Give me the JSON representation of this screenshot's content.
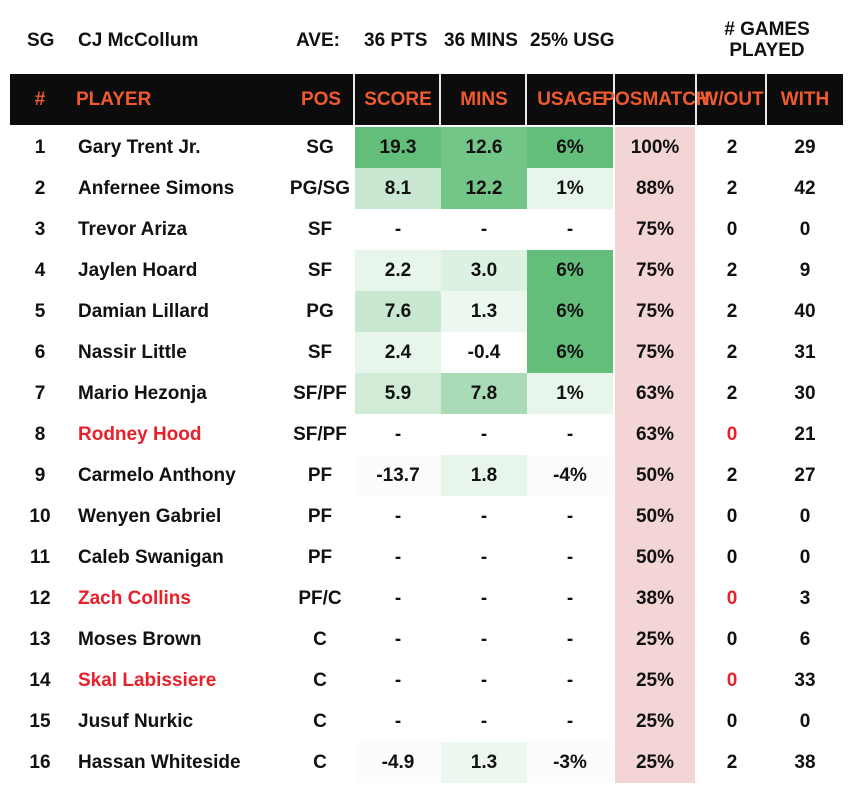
{
  "header": {
    "position": "SG",
    "player": "CJ McCollum",
    "ave_label": "AVE:",
    "pts": "36 PTS",
    "mins": "36 MINS",
    "usg": "25% USG",
    "games_line1": "# GAMES",
    "games_line2": "PLAYED"
  },
  "columns": {
    "num": "#",
    "player": "PLAYER",
    "pos": "POS",
    "score": "SCORE",
    "mins": "MINS",
    "usage": "USAGE",
    "match_line1": "POS",
    "match_line2": "MATCH",
    "wout": "W/OUT",
    "with": "WITH"
  },
  "colors": {
    "header_bg": "#0c0c0c",
    "header_text": "#ef5a2f",
    "injured_text": "#e8202a",
    "match_bg": "#f4d5d5",
    "heat_green": "#63be7b"
  },
  "rows": [
    {
      "num": "1",
      "name": "Gary Trent Jr.",
      "pos": "SG",
      "score": "19.3",
      "mins": "12.6",
      "usage": "6%",
      "match": "100%",
      "wout": "2",
      "with": "29",
      "injured": false,
      "shade": {
        "score": 1.0,
        "mins": 0.9,
        "usage": 1.0
      }
    },
    {
      "num": "2",
      "name": "Anfernee Simons",
      "pos": "PG/SG",
      "score": "8.1",
      "mins": "12.2",
      "usage": "1%",
      "match": "88%",
      "wout": "2",
      "with": "42",
      "injured": false,
      "shade": {
        "score": 0.35,
        "mins": 0.9,
        "usage": 0.15
      }
    },
    {
      "num": "3",
      "name": "Trevor Ariza",
      "pos": "SF",
      "score": "-",
      "mins": "-",
      "usage": "-",
      "match": "75%",
      "wout": "0",
      "with": "0",
      "injured": false,
      "shade": {
        "score": 0,
        "mins": 0,
        "usage": 0
      }
    },
    {
      "num": "4",
      "name": "Jaylen Hoard",
      "pos": "SF",
      "score": "2.2",
      "mins": "3.0",
      "usage": "6%",
      "match": "75%",
      "wout": "2",
      "with": "9",
      "injured": false,
      "shade": {
        "score": 0.15,
        "mins": 0.22,
        "usage": 1.0
      }
    },
    {
      "num": "5",
      "name": "Damian Lillard",
      "pos": "PG",
      "score": "7.6",
      "mins": "1.3",
      "usage": "6%",
      "match": "75%",
      "wout": "2",
      "with": "40",
      "injured": false,
      "shade": {
        "score": 0.35,
        "mins": 0.12,
        "usage": 1.0
      }
    },
    {
      "num": "6",
      "name": "Nassir Little",
      "pos": "SF",
      "score": "2.4",
      "mins": "-0.4",
      "usage": "6%",
      "match": "75%",
      "wout": "2",
      "with": "31",
      "injured": false,
      "shade": {
        "score": 0.15,
        "mins": 0,
        "usage": 1.0
      }
    },
    {
      "num": "7",
      "name": "Mario Hezonja",
      "pos": "SF/PF",
      "score": "5.9",
      "mins": "7.8",
      "usage": "1%",
      "match": "63%",
      "wout": "2",
      "with": "30",
      "injured": false,
      "shade": {
        "score": 0.3,
        "mins": 0.55,
        "usage": 0.15
      }
    },
    {
      "num": "8",
      "name": "Rodney Hood",
      "pos": "SF/PF",
      "score": "-",
      "mins": "-",
      "usage": "-",
      "match": "63%",
      "wout": "0",
      "with": "21",
      "injured": true,
      "shade": {
        "score": 0,
        "mins": 0,
        "usage": 0
      }
    },
    {
      "num": "9",
      "name": "Carmelo Anthony",
      "pos": "PF",
      "score": "-13.7",
      "mins": "1.8",
      "usage": "-4%",
      "match": "50%",
      "wout": "2",
      "with": "27",
      "injured": false,
      "shade": {
        "score": 0.04,
        "mins": 0.15,
        "usage": 0.04
      }
    },
    {
      "num": "10",
      "name": "Wenyen Gabriel",
      "pos": "PF",
      "score": "-",
      "mins": "-",
      "usage": "-",
      "match": "50%",
      "wout": "0",
      "with": "0",
      "injured": false,
      "shade": {
        "score": 0,
        "mins": 0,
        "usage": 0
      }
    },
    {
      "num": "11",
      "name": "Caleb Swanigan",
      "pos": "PF",
      "score": "-",
      "mins": "-",
      "usage": "-",
      "match": "50%",
      "wout": "0",
      "with": "0",
      "injured": false,
      "shade": {
        "score": 0,
        "mins": 0,
        "usage": 0
      }
    },
    {
      "num": "12",
      "name": "Zach Collins",
      "pos": "PF/C",
      "score": "-",
      "mins": "-",
      "usage": "-",
      "match": "38%",
      "wout": "0",
      "with": "3",
      "injured": true,
      "shade": {
        "score": 0,
        "mins": 0,
        "usage": 0
      }
    },
    {
      "num": "13",
      "name": "Moses Brown",
      "pos": "C",
      "score": "-",
      "mins": "-",
      "usage": "-",
      "match": "25%",
      "wout": "0",
      "with": "6",
      "injured": false,
      "shade": {
        "score": 0,
        "mins": 0,
        "usage": 0
      }
    },
    {
      "num": "14",
      "name": "Skal Labissiere",
      "pos": "C",
      "score": "-",
      "mins": "-",
      "usage": "-",
      "match": "25%",
      "wout": "0",
      "with": "33",
      "injured": true,
      "shade": {
        "score": 0,
        "mins": 0,
        "usage": 0
      }
    },
    {
      "num": "15",
      "name": "Jusuf Nurkic",
      "pos": "C",
      "score": "-",
      "mins": "-",
      "usage": "-",
      "match": "25%",
      "wout": "0",
      "with": "0",
      "injured": false,
      "shade": {
        "score": 0,
        "mins": 0,
        "usage": 0
      }
    },
    {
      "num": "16",
      "name": "Hassan Whiteside",
      "pos": "C",
      "score": "-4.9",
      "mins": "1.3",
      "usage": "-3%",
      "match": "25%",
      "wout": "2",
      "with": "38",
      "injured": false,
      "shade": {
        "score": 0.03,
        "mins": 0.12,
        "usage": 0.03
      }
    }
  ]
}
